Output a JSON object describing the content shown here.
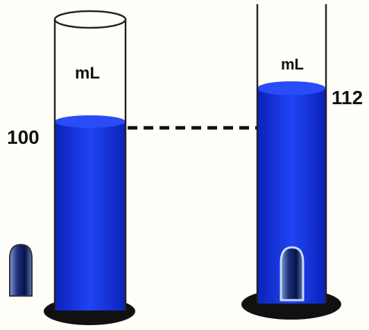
{
  "left_cylinder": {
    "unit": "mL",
    "reading": "100"
  },
  "right_cylinder": {
    "unit": "mL",
    "reading": "112"
  },
  "colors": {
    "water": "#1a3cf0",
    "water_dark": "#0c22b8",
    "base": "#111111",
    "object": "#0b1a5a",
    "glass_outline": "#222222",
    "dashed_line": "#111111"
  },
  "icons": {
    "object": "bullet-shaped-object"
  }
}
